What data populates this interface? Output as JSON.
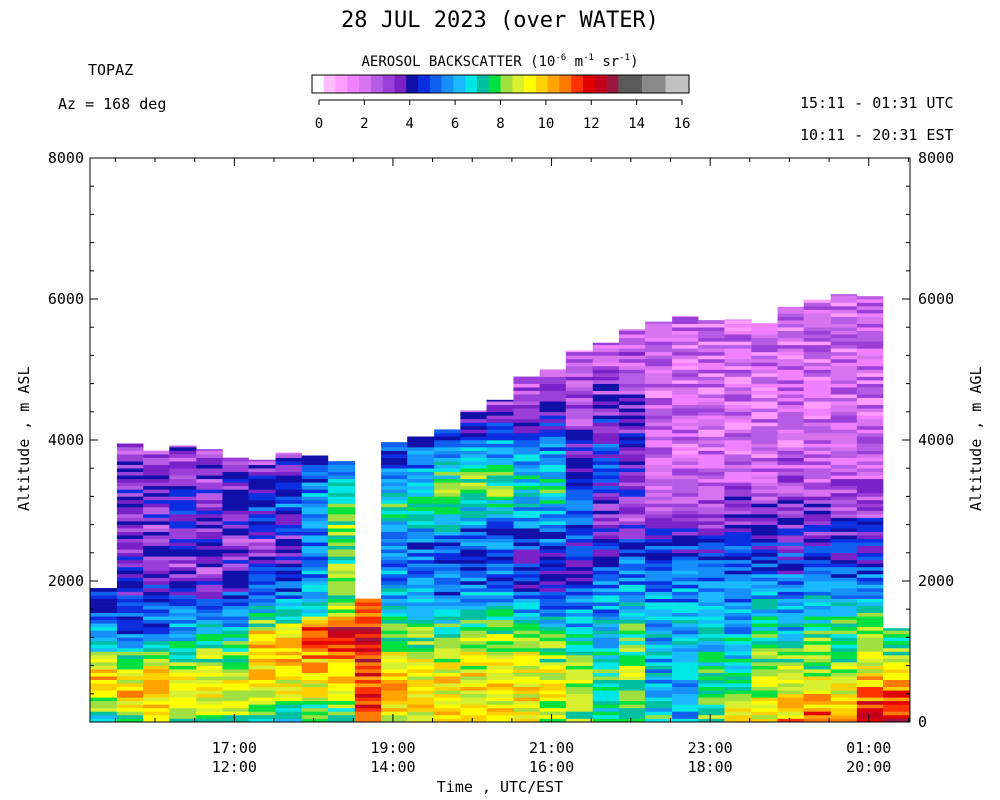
{
  "header": {
    "title": "28 JUL 2023 (over WATER)",
    "instrument": "TOPAZ",
    "azimuth": "Az = 168 deg",
    "utc_range": "15:11 - 01:31 UTC",
    "est_range": "10:11 - 20:31 EST"
  },
  "colorbar": {
    "title_prefix": "AEROSOL BACKSCATTER (10",
    "exp1": "-6",
    "mid1": " m",
    "exp2": "-1",
    "mid2": " sr",
    "exp3": "-1",
    "suffix": ")",
    "ticks": [
      "0",
      "2",
      "4",
      "6",
      "8",
      "10",
      "12",
      "14",
      "16"
    ],
    "colors": [
      "#ffffff",
      "#ffbdff",
      "#ff9cff",
      "#f080ff",
      "#d873f0",
      "#b65ce4",
      "#9b3fd8",
      "#7a22c8",
      "#1010a8",
      "#0a2ee0",
      "#1060f0",
      "#1690f8",
      "#19b8ff",
      "#00e6e6",
      "#00c0a0",
      "#00e040",
      "#a0e040",
      "#d8f030",
      "#ffff00",
      "#ffd000",
      "#ffa400",
      "#ff7a00",
      "#ff3300",
      "#e00000",
      "#c4001c",
      "#9c1640",
      "#5a5a5a",
      "#5a5a5a",
      "#8a8a8a",
      "#8a8a8a",
      "#c0c0c0",
      "#c0c0c0"
    ]
  },
  "chart_data": {
    "type": "heatmap",
    "title": "28 JUL 2023 (over WATER)",
    "xlabel": "Time , UTC/EST",
    "ylabel_left": "Altitude , m ASL",
    "ylabel_right": "Altitude , m AGL",
    "ylim": [
      0,
      8000
    ],
    "yticks": [
      "0",
      "2000",
      "4000",
      "6000",
      "8000"
    ],
    "yticks_left_labels": [
      "2000",
      "4000",
      "6000",
      "8000"
    ],
    "yticks_right_labels": [
      "0",
      "2000",
      "4000",
      "6000",
      "8000"
    ],
    "xlim_utc_hours": [
      15.18,
      25.52
    ],
    "xticks_utc": [
      "17:00",
      "19:00",
      "21:00",
      "23:00",
      "01:00"
    ],
    "xticks_est": [
      "12:00",
      "14:00",
      "16:00",
      "18:00",
      "20:00"
    ],
    "colorbar_range": [
      0,
      16
    ],
    "columns": [
      {
        "t_start": 15.18,
        "t_end": 15.52,
        "top": 1900,
        "profile": [
          [
            0,
            6
          ],
          [
            300,
            8
          ],
          [
            700,
            10
          ],
          [
            1000,
            7
          ],
          [
            1400,
            5
          ],
          [
            1900,
            4
          ]
        ]
      },
      {
        "t_start": 15.52,
        "t_end": 15.85,
        "top": 3950,
        "profile": [
          [
            0,
            7
          ],
          [
            400,
            10
          ],
          [
            800,
            8
          ],
          [
            1300,
            5
          ],
          [
            2000,
            4
          ],
          [
            2700,
            3
          ],
          [
            3300,
            3.5
          ],
          [
            3950,
            3
          ]
        ]
      },
      {
        "t_start": 15.85,
        "t_end": 16.18,
        "top": 3850,
        "profile": [
          [
            0,
            8
          ],
          [
            400,
            10
          ],
          [
            800,
            9
          ],
          [
            1300,
            5
          ],
          [
            2000,
            4
          ],
          [
            2700,
            3
          ],
          [
            3300,
            3.5
          ],
          [
            3850,
            3
          ]
        ]
      },
      {
        "t_start": 16.18,
        "t_end": 16.52,
        "top": 3920,
        "profile": [
          [
            0,
            8
          ],
          [
            500,
            9
          ],
          [
            1000,
            7
          ],
          [
            1500,
            5
          ],
          [
            2200,
            3
          ],
          [
            3000,
            4
          ],
          [
            3920,
            3
          ]
        ]
      },
      {
        "t_start": 16.52,
        "t_end": 16.85,
        "top": 3870,
        "profile": [
          [
            0,
            8
          ],
          [
            500,
            9
          ],
          [
            1000,
            8
          ],
          [
            1500,
            5
          ],
          [
            2200,
            3
          ],
          [
            3000,
            3.5
          ],
          [
            3870,
            2.5
          ]
        ]
      },
      {
        "t_start": 16.85,
        "t_end": 17.18,
        "top": 3750,
        "profile": [
          [
            0,
            8
          ],
          [
            600,
            9
          ],
          [
            1200,
            7
          ],
          [
            1700,
            5
          ],
          [
            2500,
            3
          ],
          [
            3100,
            4
          ],
          [
            3750,
            3
          ]
        ]
      },
      {
        "t_start": 17.18,
        "t_end": 17.52,
        "top": 3720,
        "profile": [
          [
            0,
            7
          ],
          [
            600,
            9
          ],
          [
            1200,
            10
          ],
          [
            1600,
            6
          ],
          [
            2500,
            3
          ],
          [
            3100,
            5
          ],
          [
            3720,
            3
          ]
        ]
      },
      {
        "t_start": 17.52,
        "t_end": 17.85,
        "top": 3820,
        "profile": [
          [
            0,
            7
          ],
          [
            600,
            9
          ],
          [
            1200,
            10
          ],
          [
            1600,
            6
          ],
          [
            2500,
            3
          ],
          [
            3100,
            5
          ],
          [
            3820,
            3
          ]
        ]
      },
      {
        "t_start": 17.85,
        "t_end": 18.18,
        "top": 3780,
        "profile": [
          [
            0,
            7
          ],
          [
            600,
            9
          ],
          [
            1300,
            11
          ],
          [
            1600,
            6
          ],
          [
            2400,
            5
          ],
          [
            3000,
            6
          ],
          [
            3780,
            4
          ]
        ]
      },
      {
        "t_start": 18.18,
        "t_end": 18.52,
        "top": 3700,
        "profile": [
          [
            0,
            7
          ],
          [
            600,
            9
          ],
          [
            1300,
            12
          ],
          [
            1700,
            7
          ],
          [
            2400,
            8
          ],
          [
            3000,
            8
          ],
          [
            3700,
            5
          ]
        ]
      },
      {
        "t_start": 18.52,
        "t_end": 18.85,
        "top": 1750,
        "profile": [
          [
            0,
            11
          ],
          [
            600,
            11
          ],
          [
            1200,
            12
          ],
          [
            1750,
            10
          ]
        ]
      },
      {
        "t_start": 18.85,
        "t_end": 19.18,
        "top": 3970,
        "profile": [
          [
            0,
            9
          ],
          [
            600,
            10
          ],
          [
            1200,
            8
          ],
          [
            1800,
            6
          ],
          [
            2500,
            5
          ],
          [
            3000,
            7
          ],
          [
            3970,
            4
          ]
        ]
      },
      {
        "t_start": 19.18,
        "t_end": 19.52,
        "top": 4050,
        "profile": [
          [
            0,
            9
          ],
          [
            600,
            9
          ],
          [
            1200,
            8
          ],
          [
            1800,
            6
          ],
          [
            2500,
            5
          ],
          [
            3200,
            7
          ],
          [
            4050,
            4
          ]
        ]
      },
      {
        "t_start": 19.52,
        "t_end": 19.85,
        "top": 4150,
        "profile": [
          [
            0,
            9
          ],
          [
            600,
            9
          ],
          [
            1200,
            8
          ],
          [
            1800,
            5
          ],
          [
            2500,
            5
          ],
          [
            3300,
            8
          ],
          [
            4150,
            4
          ]
        ]
      },
      {
        "t_start": 19.85,
        "t_end": 20.18,
        "top": 4420,
        "profile": [
          [
            0,
            9
          ],
          [
            600,
            9
          ],
          [
            1200,
            8
          ],
          [
            2000,
            5
          ],
          [
            2700,
            5
          ],
          [
            3300,
            8
          ],
          [
            4420,
            3
          ]
        ]
      },
      {
        "t_start": 20.18,
        "t_end": 20.52,
        "top": 4570,
        "profile": [
          [
            0,
            9
          ],
          [
            600,
            9
          ],
          [
            1200,
            8
          ],
          [
            2000,
            5
          ],
          [
            2700,
            5
          ],
          [
            3300,
            8
          ],
          [
            4570,
            3
          ]
        ]
      },
      {
        "t_start": 20.52,
        "t_end": 20.85,
        "top": 4900,
        "profile": [
          [
            0,
            9
          ],
          [
            600,
            9
          ],
          [
            1200,
            8
          ],
          [
            2000,
            4
          ],
          [
            2700,
            5
          ],
          [
            3300,
            7
          ],
          [
            4900,
            2
          ]
        ]
      },
      {
        "t_start": 20.85,
        "t_end": 21.18,
        "top": 5000,
        "profile": [
          [
            0,
            8
          ],
          [
            600,
            9
          ],
          [
            1200,
            7
          ],
          [
            2000,
            4
          ],
          [
            2700,
            5
          ],
          [
            3300,
            7
          ],
          [
            5000,
            2
          ]
        ]
      },
      {
        "t_start": 21.18,
        "t_end": 21.52,
        "top": 5270,
        "profile": [
          [
            0,
            8
          ],
          [
            700,
            8
          ],
          [
            1400,
            6
          ],
          [
            2200,
            4
          ],
          [
            2900,
            5
          ],
          [
            3500,
            4
          ],
          [
            5270,
            2
          ]
        ]
      },
      {
        "t_start": 21.52,
        "t_end": 21.85,
        "top": 5380,
        "profile": [
          [
            0,
            7
          ],
          [
            700,
            7
          ],
          [
            1400,
            6
          ],
          [
            2200,
            5
          ],
          [
            3000,
            3
          ],
          [
            3500,
            5
          ],
          [
            5380,
            2
          ]
        ]
      },
      {
        "t_start": 21.85,
        "t_end": 22.18,
        "top": 5570,
        "profile": [
          [
            0,
            7
          ],
          [
            700,
            8
          ],
          [
            1400,
            7
          ],
          [
            2200,
            5
          ],
          [
            3000,
            3
          ],
          [
            3500,
            4
          ],
          [
            5570,
            2
          ]
        ]
      },
      {
        "t_start": 22.18,
        "t_end": 22.52,
        "top": 5680,
        "profile": [
          [
            0,
            7
          ],
          [
            700,
            6
          ],
          [
            1400,
            6
          ],
          [
            2300,
            5
          ],
          [
            3000,
            3
          ],
          [
            3800,
            2
          ],
          [
            5680,
            2
          ]
        ]
      },
      {
        "t_start": 22.52,
        "t_end": 22.85,
        "top": 5760,
        "profile": [
          [
            0,
            6
          ],
          [
            700,
            6
          ],
          [
            1400,
            6
          ],
          [
            2300,
            5
          ],
          [
            3000,
            3
          ],
          [
            3800,
            2
          ],
          [
            5760,
            2
          ]
        ]
      },
      {
        "t_start": 22.85,
        "t_end": 23.18,
        "top": 5700,
        "profile": [
          [
            0,
            8
          ],
          [
            700,
            7
          ],
          [
            1400,
            6
          ],
          [
            2300,
            5
          ],
          [
            3000,
            3
          ],
          [
            3800,
            2
          ],
          [
            5700,
            2
          ]
        ]
      },
      {
        "t_start": 23.18,
        "t_end": 23.52,
        "top": 5710,
        "profile": [
          [
            0,
            9
          ],
          [
            700,
            7
          ],
          [
            1400,
            6
          ],
          [
            2200,
            5
          ],
          [
            3000,
            3
          ],
          [
            3800,
            2
          ],
          [
            5710,
            2
          ]
        ]
      },
      {
        "t_start": 23.52,
        "t_end": 23.85,
        "top": 5660,
        "profile": [
          [
            0,
            9
          ],
          [
            700,
            8
          ],
          [
            1400,
            7
          ],
          [
            2100,
            5
          ],
          [
            3000,
            3
          ],
          [
            3800,
            2
          ],
          [
            5660,
            2
          ]
        ]
      },
      {
        "t_start": 23.85,
        "t_end": 24.18,
        "top": 5890,
        "profile": [
          [
            0,
            10
          ],
          [
            700,
            8
          ],
          [
            1400,
            6
          ],
          [
            2000,
            5
          ],
          [
            3000,
            3
          ],
          [
            4000,
            2
          ],
          [
            5890,
            2
          ]
        ]
      },
      {
        "t_start": 24.18,
        "t_end": 24.52,
        "top": 5990,
        "profile": [
          [
            0,
            11
          ],
          [
            700,
            8
          ],
          [
            1400,
            7
          ],
          [
            2000,
            5
          ],
          [
            3000,
            3
          ],
          [
            4000,
            2
          ],
          [
            5990,
            2
          ]
        ]
      },
      {
        "t_start": 24.52,
        "t_end": 24.85,
        "top": 6070,
        "profile": [
          [
            0,
            10
          ],
          [
            700,
            8
          ],
          [
            1400,
            7
          ],
          [
            2000,
            5
          ],
          [
            3000,
            3
          ],
          [
            4000,
            2
          ],
          [
            6070,
            2
          ]
        ]
      },
      {
        "t_start": 24.85,
        "t_end": 25.18,
        "top": 6040,
        "profile": [
          [
            0,
            12
          ],
          [
            700,
            9
          ],
          [
            1400,
            8
          ],
          [
            2000,
            5
          ],
          [
            3000,
            3
          ],
          [
            4000,
            2
          ],
          [
            6040,
            2
          ]
        ]
      },
      {
        "t_start": 25.18,
        "t_end": 25.52,
        "top": 1330,
        "profile": [
          [
            0,
            12
          ],
          [
            500,
            10
          ],
          [
            900,
            8
          ],
          [
            1330,
            7
          ]
        ]
      }
    ]
  }
}
